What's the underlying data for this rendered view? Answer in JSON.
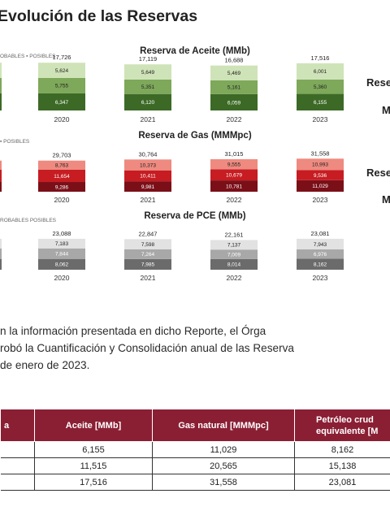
{
  "heading": "Evolución de las Reservas",
  "side_labels": {
    "aceite_top": "Rese",
    "aceite_bottom": "M",
    "gas_top": "Rese",
    "gas_bottom": "M"
  },
  "colors": {
    "aceite": [
      "#3c6a26",
      "#7ea85a",
      "#cfe3b8"
    ],
    "gas": [
      "#7a0f18",
      "#c61c22",
      "#ee8a80"
    ],
    "pce": [
      "#6b6b6b",
      "#a8a8a8",
      "#e2e2e2"
    ],
    "table_header": "#8a1f34"
  },
  "chart_data": [
    {
      "type": "bar",
      "title": "Reserva de Aceite (MMb)",
      "legend_partial": "OBABLES ▪ POSIBLES",
      "categories": [
        "2020",
        "2021",
        "2022",
        "2023"
      ],
      "series": [
        {
          "values": [
            6347,
            6120,
            6059,
            6155
          ]
        },
        {
          "values": [
            5755,
            5351,
            5161,
            5360
          ]
        },
        {
          "values": [
            5624,
            5649,
            5469,
            6001
          ]
        }
      ],
      "totals": [
        17726,
        17119,
        16688,
        17516
      ],
      "value_labels": [
        [
          "6,347",
          "6,120",
          "6,059",
          "6,155"
        ],
        [
          "5,755",
          "5,351",
          "5,161",
          "5,360"
        ],
        [
          "5,624",
          "5,649",
          "5,469",
          "6,001"
        ]
      ],
      "total_labels": [
        "17,726",
        "17,119",
        "16,688",
        "17,516"
      ]
    },
    {
      "type": "bar",
      "title": "Reserva de Gas (MMMpc)",
      "legend_partial": "▪ POSIBLES",
      "categories": [
        "2020",
        "2021",
        "2022",
        "2023"
      ],
      "series": [
        {
          "values": [
            9286,
            9981,
            10781,
            11029
          ]
        },
        {
          "values": [
            11654,
            10411,
            10679,
            9536
          ]
        },
        {
          "values": [
            8763,
            10373,
            9555,
            10993
          ]
        }
      ],
      "totals": [
        29703,
        30764,
        31015,
        31558
      ],
      "value_labels": [
        [
          "9,286",
          "9,981",
          "10,781",
          "11,029"
        ],
        [
          "11,654",
          "10,411",
          "10,679",
          "9,536"
        ],
        [
          "8,763",
          "10,373",
          "9,555",
          "10,993"
        ]
      ],
      "total_labels": [
        "29,703",
        "30,764",
        "31,015",
        "31,558"
      ]
    },
    {
      "type": "bar",
      "title": "Reserva de PCE (MMb)",
      "legend_partial": "ROBABLES   POSIBLES",
      "categories": [
        "2020",
        "2021",
        "2022",
        "2023"
      ],
      "series": [
        {
          "values": [
            8062,
            7985,
            8014,
            8162
          ]
        },
        {
          "values": [
            7844,
            7264,
            7009,
            6976
          ]
        },
        {
          "values": [
            7183,
            7598,
            7137,
            7943
          ]
        }
      ],
      "totals": [
        23088,
        22847,
        22161,
        23081
      ],
      "value_labels": [
        [
          "8,062",
          "7,985",
          "8,014",
          "8,162"
        ],
        [
          "7,844",
          "7,264",
          "7,009",
          "6,976"
        ],
        [
          "7,183",
          "7,598",
          "7,137",
          "7,943"
        ]
      ],
      "total_labels": [
        "23,088",
        "22,847",
        "22,161",
        "23,081"
      ]
    }
  ],
  "paragraph": [
    "n la información presentada en dicho Reporte, el Órga",
    "robó la Cuantificación y Consolidación anual de las Reserva",
    "de enero de 2023."
  ],
  "table": {
    "headers": [
      "a",
      "Aceite [MMb]",
      "Gas natural [MMMpc]",
      "Petróleo crud",
      "equivalente [M"
    ],
    "rows": [
      [
        "6,155",
        "11,029",
        "8,162"
      ],
      [
        "11,515",
        "20,565",
        "15,138"
      ],
      [
        "17,516",
        "31,558",
        "23,081"
      ]
    ]
  }
}
